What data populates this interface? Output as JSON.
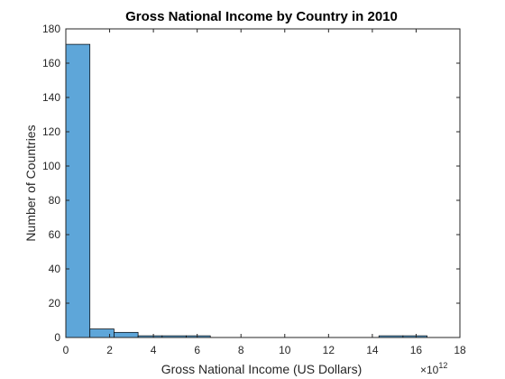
{
  "chart_data": {
    "type": "bar",
    "title": "Gross National Income by Country in 2010",
    "xlabel": "Gross National Income (US Dollars)",
    "ylabel": "Number of Countries",
    "x_exponent_base": "×10",
    "x_exponent_power": "12",
    "xlim": [
      0,
      18
    ],
    "ylim": [
      0,
      180
    ],
    "x_ticks": [
      "0",
      "2",
      "4",
      "6",
      "8",
      "10",
      "12",
      "14",
      "16",
      "18"
    ],
    "y_ticks": [
      "0",
      "20",
      "40",
      "60",
      "80",
      "100",
      "120",
      "140",
      "160",
      "180"
    ],
    "bin_width": 1.1,
    "bins": [
      {
        "start": 0.0,
        "value": 171
      },
      {
        "start": 1.1,
        "value": 5
      },
      {
        "start": 2.2,
        "value": 3
      },
      {
        "start": 3.3,
        "value": 1
      },
      {
        "start": 4.4,
        "value": 1
      },
      {
        "start": 5.5,
        "value": 1
      },
      {
        "start": 6.6,
        "value": 0
      },
      {
        "start": 7.7,
        "value": 0
      },
      {
        "start": 8.8,
        "value": 0
      },
      {
        "start": 9.9,
        "value": 0
      },
      {
        "start": 11.0,
        "value": 0
      },
      {
        "start": 12.1,
        "value": 0
      },
      {
        "start": 13.2,
        "value": 0
      },
      {
        "start": 14.3,
        "value": 1
      },
      {
        "start": 15.4,
        "value": 1
      }
    ],
    "bar_color": "#5ea6d9",
    "bar_edge_color": "#000000",
    "grid": false,
    "box": true
  }
}
